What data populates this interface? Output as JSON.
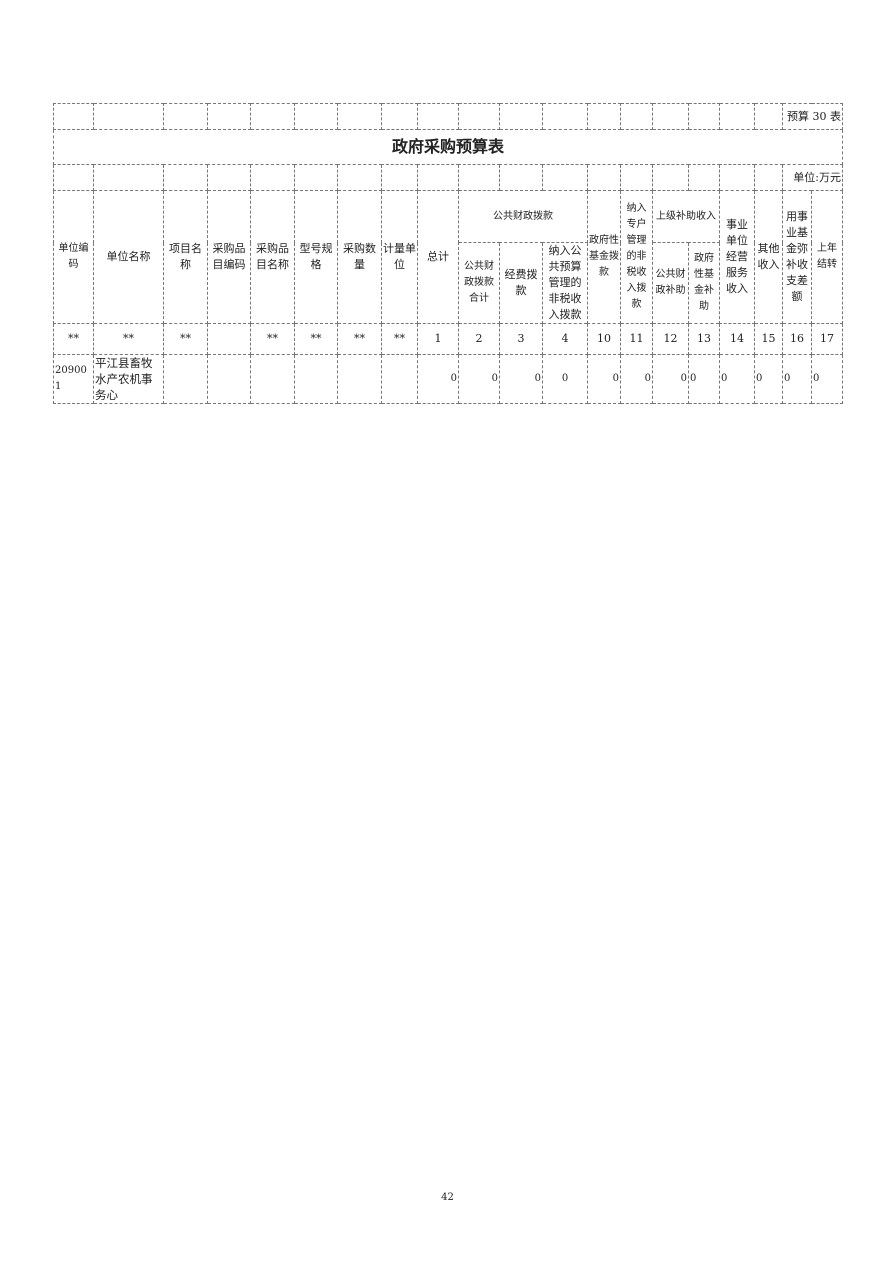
{
  "table_label": "预算 30 表",
  "title": "政府采购预算表",
  "unit": "单位:万元",
  "headers": {
    "unit_code": "单位编码",
    "unit_name": "单位名称",
    "project_name": "项目名称",
    "item_code": "采购品目编码",
    "item_name": "采购品目名称",
    "model": "型号规格",
    "quantity": "采购数量",
    "measure_unit": "计量单位",
    "total": "总计",
    "public_finance": "公共财政拨款",
    "public_finance_total": "公共财政拨款合计",
    "expense": "经费拨款",
    "nontax_budget": "纳入公共预算管理的非税收入拨款",
    "gov_fund": "政府性基金拨款",
    "special_account": "纳入专户管理的非税收入拨款",
    "superior_subsidy": "上级补助收入",
    "public_subsidy": "公共财政补助",
    "gov_fund_subsidy": "政府性基金补助",
    "business_income": "事业单位经营服务收入",
    "other_income": "其他收入",
    "fund_offset": "用事业基金弥补收支差额",
    "carryover": "上年结转"
  },
  "codes": [
    "**",
    "**",
    "**",
    "",
    "**",
    "**",
    "**",
    "**",
    "1",
    "2",
    "3",
    "4",
    "10",
    "11",
    "12",
    "13",
    "14",
    "15",
    "16",
    "17"
  ],
  "rows": [
    {
      "unit_code": "209001",
      "unit_name": "平江县畜牧水产农机事务心",
      "values": [
        "0",
        "0",
        "0",
        "0",
        "0",
        "0",
        "0",
        "0",
        "0",
        "0",
        "0",
        "0"
      ]
    }
  ],
  "page_number": "42"
}
